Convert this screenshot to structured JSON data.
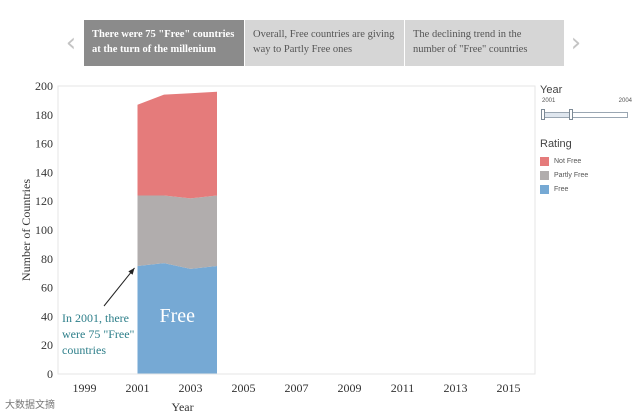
{
  "story": {
    "points": [
      {
        "text": "There were 75 \"Free\" countries at the turn of the millenium",
        "active": true
      },
      {
        "text": "Overall, Free countries are giving way to Partly Free ones",
        "active": false
      },
      {
        "text": "The declining trend in the number of \"Free\" countries",
        "active": false
      }
    ],
    "prev_icon": "chevron-left-icon",
    "next_icon": "chevron-right-icon"
  },
  "legend": {
    "year_title": "Year",
    "year_min": "2001",
    "year_max": "2004",
    "year_selected_fraction": 0.33,
    "rating_title": "Rating",
    "items": [
      {
        "label": "Not Free",
        "color": "#e57b7b"
      },
      {
        "label": "Partly Free",
        "color": "#b1adad"
      },
      {
        "label": "Free",
        "color": "#76a9d4"
      }
    ]
  },
  "annotation": {
    "text": "In 2001, there were 75 \"Free\" countries"
  },
  "chart_data": {
    "type": "area",
    "xlabel": "Year",
    "ylabel": "Number of Countries",
    "xlim": [
      1998,
      2016
    ],
    "ylim": [
      0,
      200
    ],
    "x_ticks": [
      "1999",
      "2001",
      "2003",
      "2005",
      "2007",
      "2009",
      "2011",
      "2013",
      "2015"
    ],
    "y_ticks": [
      0,
      20,
      40,
      60,
      80,
      100,
      120,
      140,
      160,
      180,
      200
    ],
    "x": [
      2001,
      2002,
      2003,
      2004
    ],
    "series": [
      {
        "name": "Free",
        "values": [
          75,
          77,
          73,
          75
        ],
        "color": "#76a9d4"
      },
      {
        "name": "Partly Free",
        "values": [
          49,
          47,
          49,
          49
        ],
        "color": "#b1adad"
      },
      {
        "name": "Not Free",
        "values": [
          63,
          70,
          73,
          72
        ],
        "color": "#e57b7b"
      }
    ],
    "area_label": "Free",
    "grid": false
  },
  "watermark": "大数据文摘"
}
